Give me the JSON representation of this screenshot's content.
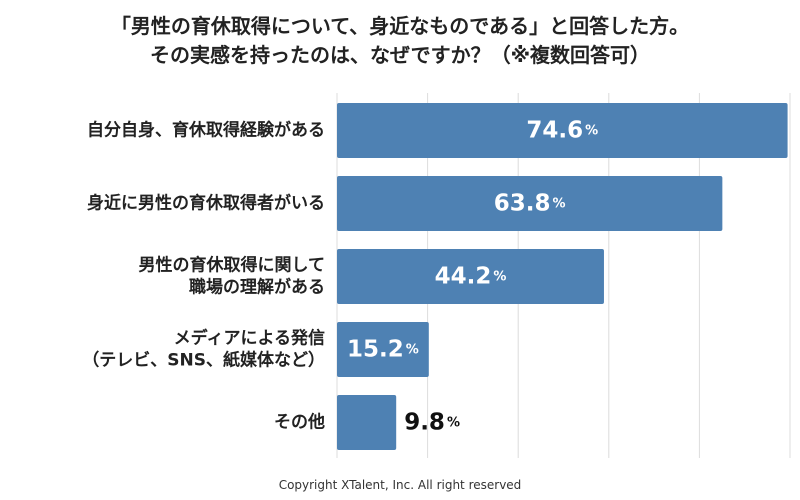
{
  "chart_data": {
    "type": "bar",
    "orientation": "horizontal",
    "title_lines": [
      "「男性の育休取得について、身近なものである」と回答した方。",
      "その実感を持ったのは、なぜですか？（※複数回答可）"
    ],
    "categories": [
      [
        "自分自身、育休取得経験がある"
      ],
      [
        "身近に男性の育休取得者がいる"
      ],
      [
        "男性の育休取得に関して",
        "職場の理解がある"
      ],
      [
        "メディアによる発信",
        "（テレビ、SNS、紙媒体など）"
      ],
      [
        "その他"
      ]
    ],
    "values": [
      74.6,
      63.8,
      44.2,
      15.2,
      9.8
    ],
    "value_suffix": "%",
    "xlim": [
      0,
      75
    ],
    "grid": true,
    "bar_color": "#4e81b3",
    "label_inside_color": "#ffffff",
    "label_outside_color": "#111111"
  },
  "footer": {
    "copyright": "Copyright XTalent, Inc. All right reserved"
  }
}
